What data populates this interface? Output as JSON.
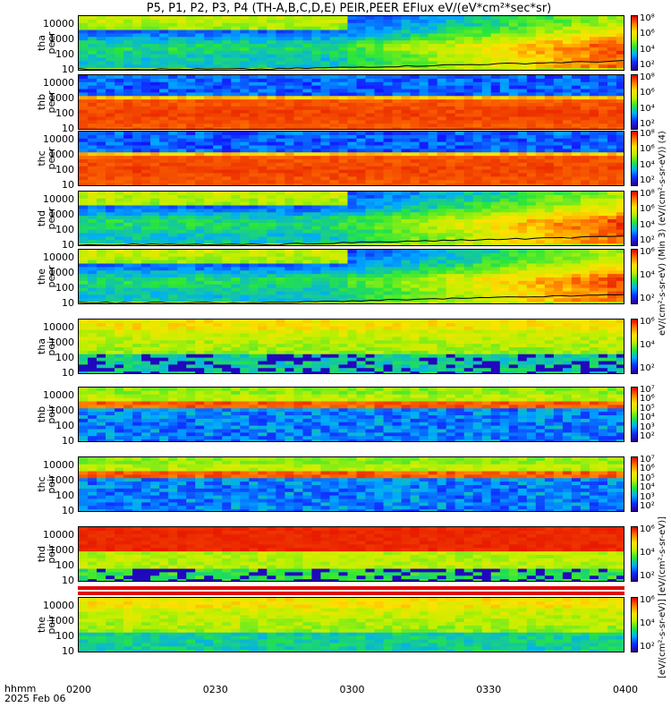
{
  "title": "P5, P1, P2, P3, P4 (TH-A,B,C,D,E) PEIR,PEER EFlux eV/(eV*cm²*sec*sr)",
  "xaxis": {
    "label_line1": "hhmm",
    "label_line2": "2025 Feb 06",
    "ticks": [
      "0200",
      "0230",
      "0300",
      "0330",
      "0400"
    ]
  },
  "colorbar_label_electron": "eV/(cm²-s-sr-eV) (Min 3) (eV/(cm²-s-sr-eV)) (4)",
  "colorbar_label_ion": "[eV/(cm²-s-sr-eV)] [eV/(cm²-s-sr-eV)]",
  "colors": {
    "low": "#1a1aff",
    "mid_green": "#20e040",
    "mid_yellow": "#ffe000",
    "high_red": "#e00000"
  },
  "chart_data": [
    {
      "type": "heatmap",
      "probe": "tha",
      "species": "peer",
      "ylabel": "tha peer",
      "yticks": [
        "10000",
        "1000",
        "100",
        "10"
      ],
      "scale": "log",
      "cb_ticks": [
        "10⁸",
        "10⁶",
        "10⁴",
        "10²"
      ],
      "x_range": [
        "0200",
        "0400"
      ],
      "profile": "electron_tha"
    },
    {
      "type": "heatmap",
      "probe": "thb",
      "species": "peer",
      "ylabel": "thb peer",
      "yticks": [
        "10000",
        "1000",
        "100",
        "10"
      ],
      "scale": "log",
      "cb_ticks": [
        "10⁸",
        "10⁶",
        "10⁴",
        "10²"
      ],
      "x_range": [
        "0200",
        "0400"
      ],
      "profile": "electron_thb"
    },
    {
      "type": "heatmap",
      "probe": "thc",
      "species": "peer",
      "ylabel": "thc peer",
      "yticks": [
        "10000",
        "1000",
        "100",
        "10"
      ],
      "scale": "log",
      "cb_ticks": [
        "10⁸",
        "10⁶",
        "10⁴",
        "10²"
      ],
      "x_range": [
        "0200",
        "0400"
      ],
      "profile": "electron_thc"
    },
    {
      "type": "heatmap",
      "probe": "thd",
      "species": "peer",
      "ylabel": "thd peer",
      "yticks": [
        "10000",
        "1000",
        "100",
        "10"
      ],
      "scale": "log",
      "cb_ticks": [
        "10⁸",
        "10⁶",
        "10⁴",
        "10²"
      ],
      "x_range": [
        "0200",
        "0400"
      ],
      "profile": "electron_thd"
    },
    {
      "type": "heatmap",
      "probe": "the",
      "species": "peer",
      "ylabel": "the peer",
      "yticks": [
        "10000",
        "1000",
        "100",
        "10"
      ],
      "scale": "log",
      "cb_ticks": [
        "10⁶",
        "10⁴",
        "10²"
      ],
      "x_range": [
        "0200",
        "0400"
      ],
      "profile": "electron_the"
    },
    {
      "type": "heatmap",
      "probe": "tha",
      "species": "peir",
      "ylabel": "tha peir",
      "yticks": [
        "10000",
        "1000",
        "100",
        "10"
      ],
      "scale": "log",
      "cb_ticks": [
        "10⁶",
        "10⁴",
        "10²"
      ],
      "x_range": [
        "0200",
        "0400"
      ],
      "profile": "ion_tha"
    },
    {
      "type": "heatmap",
      "probe": "thb",
      "species": "peir",
      "ylabel": "thb peir",
      "yticks": [
        "10000",
        "1000",
        "100",
        "10"
      ],
      "scale": "log",
      "cb_ticks": [
        "10⁷",
        "10⁶",
        "10⁵",
        "10⁴",
        "10³",
        "10²"
      ],
      "x_range": [
        "0200",
        "0400"
      ],
      "profile": "ion_thb"
    },
    {
      "type": "heatmap",
      "probe": "thc",
      "species": "peir",
      "ylabel": "thc peir",
      "yticks": [
        "10000",
        "1000",
        "100",
        "10"
      ],
      "scale": "log",
      "cb_ticks": [
        "10⁷",
        "10⁶",
        "10⁵",
        "10⁴",
        "10³",
        "10²"
      ],
      "x_range": [
        "0200",
        "0400"
      ],
      "profile": "ion_thc"
    },
    {
      "type": "heatmap",
      "probe": "thd",
      "species": "peir",
      "ylabel": "thd peir",
      "yticks": [
        "10000",
        "1000",
        "100",
        "10"
      ],
      "scale": "log",
      "cb_ticks": [
        "10⁶",
        "10⁴",
        "10²"
      ],
      "x_range": [
        "0200",
        "0400"
      ],
      "profile": "ion_thd"
    },
    {
      "type": "heatmap",
      "probe": "the",
      "species": "peir",
      "ylabel": "the peir",
      "yticks": [
        "10000",
        "1000",
        "100",
        "10"
      ],
      "scale": "log",
      "cb_ticks": [
        "10⁶",
        "10⁴",
        "10²"
      ],
      "x_range": [
        "0200",
        "0400"
      ],
      "profile": "ion_the"
    }
  ]
}
